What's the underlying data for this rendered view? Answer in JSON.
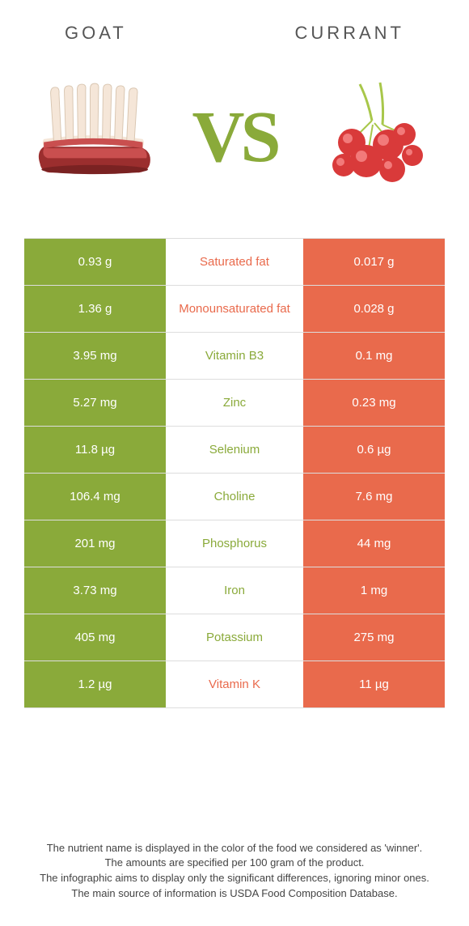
{
  "colors": {
    "left_bg": "#8aaa3a",
    "right_bg": "#e96a4c",
    "left_text": "#8aaa3a",
    "right_text": "#e96a4c",
    "vs_color": "#8aaa3a",
    "title_color": "#555555",
    "footer_color": "#444444",
    "border_color": "#dddddd"
  },
  "header": {
    "left": "GOAT",
    "right": "CURRANT"
  },
  "vs_label": "VS",
  "rows": [
    {
      "left": "0.93 g",
      "label": "Saturated fat",
      "right": "0.017 g",
      "winner": "right"
    },
    {
      "left": "1.36 g",
      "label": "Monounsaturated fat",
      "right": "0.028 g",
      "winner": "right"
    },
    {
      "left": "3.95 mg",
      "label": "Vitamin B3",
      "right": "0.1 mg",
      "winner": "left"
    },
    {
      "left": "5.27 mg",
      "label": "Zinc",
      "right": "0.23 mg",
      "winner": "left"
    },
    {
      "left": "11.8 µg",
      "label": "Selenium",
      "right": "0.6 µg",
      "winner": "left"
    },
    {
      "left": "106.4 mg",
      "label": "Choline",
      "right": "7.6 mg",
      "winner": "left"
    },
    {
      "left": "201 mg",
      "label": "Phosphorus",
      "right": "44 mg",
      "winner": "left"
    },
    {
      "left": "3.73 mg",
      "label": "Iron",
      "right": "1 mg",
      "winner": "left"
    },
    {
      "left": "405 mg",
      "label": "Potassium",
      "right": "275 mg",
      "winner": "left"
    },
    {
      "left": "1.2 µg",
      "label": "Vitamin K",
      "right": "11 µg",
      "winner": "right"
    }
  ],
  "footer": {
    "line1": "The nutrient name is displayed in the color of the food we considered as 'winner'.",
    "line2": "The amounts are specified per 100 gram of the product.",
    "line3": "The infographic aims to display only the significant differences, ignoring minor ones.",
    "line4": "The main source of information is USDA Food Composition Database."
  }
}
